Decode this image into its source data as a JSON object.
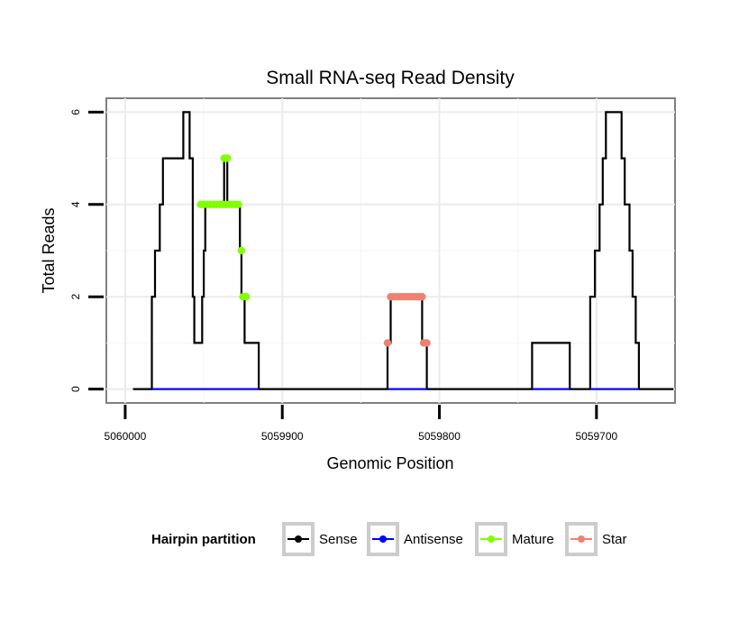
{
  "chart_data": {
    "type": "line",
    "title": "Small RNA-seq Read Density",
    "xlabel": "Genomic Position",
    "ylabel": "Total Reads",
    "x_reversed": true,
    "xlim": [
      5060012,
      5059650
    ],
    "ylim": [
      -0.3,
      6.3
    ],
    "x_ticks": [
      5060000,
      5059900,
      5059800,
      5059700
    ],
    "x_tick_labels": [
      "5060000",
      "5059900",
      "5059800",
      "5059700"
    ],
    "y_ticks": [
      0,
      2,
      4,
      6
    ],
    "y_tick_labels": [
      "0",
      "2",
      "4",
      "6"
    ],
    "grid": true,
    "legend": {
      "title": "Hairpin partition",
      "position": "bottom",
      "entries": [
        "Sense",
        "Antisense",
        "Mature",
        "Star"
      ]
    },
    "series": [
      {
        "name": "Sense",
        "color": "#000000",
        "points": [
          [
            5059995,
            0
          ],
          [
            5059983,
            0
          ],
          [
            5059983,
            2
          ],
          [
            5059981,
            2
          ],
          [
            5059981,
            3
          ],
          [
            5059978,
            3
          ],
          [
            5059978,
            4
          ],
          [
            5059976,
            4
          ],
          [
            5059976,
            5
          ],
          [
            5059963,
            5
          ],
          [
            5059963,
            6
          ],
          [
            5059959,
            6
          ],
          [
            5059959,
            5
          ],
          [
            5059957,
            5
          ],
          [
            5059957,
            2
          ],
          [
            5059956,
            2
          ],
          [
            5059956,
            1
          ],
          [
            5059951,
            1
          ],
          [
            5059951,
            2
          ],
          [
            5059950,
            2
          ],
          [
            5059950,
            3
          ],
          [
            5059949,
            3
          ],
          [
            5059949,
            4
          ],
          [
            5059937,
            4
          ],
          [
            5059937,
            5
          ],
          [
            5059935,
            5
          ],
          [
            5059935,
            4
          ],
          [
            5059927,
            4
          ],
          [
            5059927,
            3
          ],
          [
            5059926,
            3
          ],
          [
            5059926,
            2
          ],
          [
            5059924,
            2
          ],
          [
            5059924,
            1
          ],
          [
            5059915,
            1
          ],
          [
            5059915,
            0
          ],
          [
            5059833,
            0
          ],
          [
            5059833,
            1
          ],
          [
            5059831,
            1
          ],
          [
            5059831,
            2
          ],
          [
            5059811,
            2
          ],
          [
            5059811,
            1
          ],
          [
            5059808,
            1
          ],
          [
            5059808,
            0
          ],
          [
            5059741,
            0
          ],
          [
            5059741,
            1
          ],
          [
            5059717,
            1
          ],
          [
            5059717,
            0
          ],
          [
            5059704,
            0
          ],
          [
            5059704,
            2
          ],
          [
            5059701,
            2
          ],
          [
            5059701,
            3
          ],
          [
            5059698,
            3
          ],
          [
            5059698,
            4
          ],
          [
            5059696,
            4
          ],
          [
            5059696,
            5
          ],
          [
            5059694,
            5
          ],
          [
            5059694,
            6
          ],
          [
            5059684,
            6
          ],
          [
            5059684,
            5
          ],
          [
            5059682,
            5
          ],
          [
            5059682,
            4
          ],
          [
            5059679,
            4
          ],
          [
            5059679,
            3
          ],
          [
            5059677,
            3
          ],
          [
            5059677,
            2
          ],
          [
            5059675,
            2
          ],
          [
            5059675,
            1
          ],
          [
            5059673,
            1
          ],
          [
            5059673,
            0
          ],
          [
            5059651,
            0
          ]
        ]
      },
      {
        "name": "Antisense",
        "color": "#0000FF",
        "points": [
          [
            5059983,
            0
          ],
          [
            5059915,
            0
          ],
          [
            5059833,
            0
          ],
          [
            5059808,
            0
          ],
          [
            5059741,
            0
          ],
          [
            5059717,
            0
          ],
          [
            5059704,
            0
          ],
          [
            5059673,
            0
          ]
        ]
      },
      {
        "name": "Mature",
        "color": "#7FFF00",
        "points": [
          [
            5059952,
            4
          ],
          [
            5059950,
            4
          ],
          [
            5059948,
            4
          ],
          [
            5059946,
            4
          ],
          [
            5059944,
            4
          ],
          [
            5059942,
            4
          ],
          [
            5059940,
            4
          ],
          [
            5059938,
            4
          ],
          [
            5059936,
            4
          ],
          [
            5059934,
            4
          ],
          [
            5059932,
            4
          ],
          [
            5059930,
            4
          ],
          [
            5059928,
            4
          ],
          [
            5059937,
            5
          ],
          [
            5059935,
            5
          ],
          [
            5059926,
            3
          ],
          [
            5059925,
            2
          ],
          [
            5059923,
            2
          ]
        ]
      },
      {
        "name": "Star",
        "color": "#F08070",
        "points": [
          [
            5059831,
            2
          ],
          [
            5059829,
            2
          ],
          [
            5059827,
            2
          ],
          [
            5059825,
            2
          ],
          [
            5059823,
            2
          ],
          [
            5059821,
            2
          ],
          [
            5059819,
            2
          ],
          [
            5059817,
            2
          ],
          [
            5059815,
            2
          ],
          [
            5059813,
            2
          ],
          [
            5059811,
            2
          ],
          [
            5059833,
            1
          ],
          [
            5059810,
            1
          ],
          [
            5059808,
            1
          ]
        ]
      }
    ]
  }
}
